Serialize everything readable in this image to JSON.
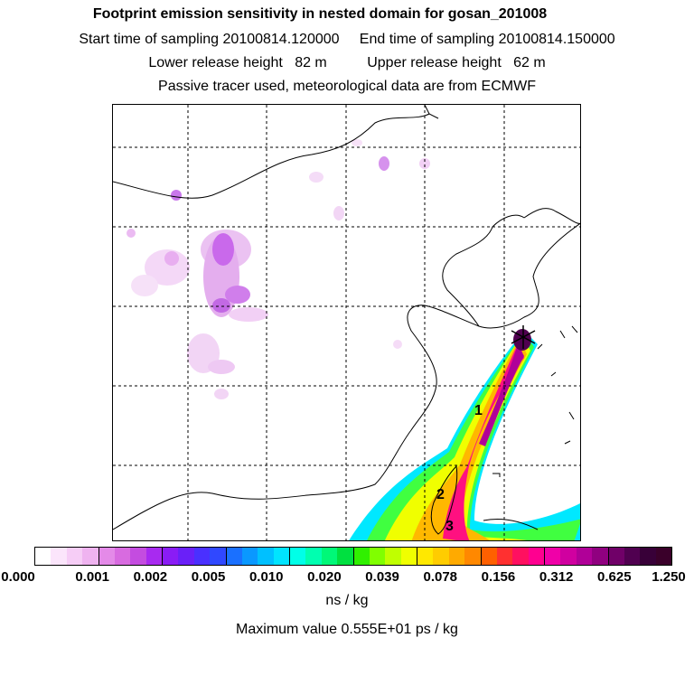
{
  "header": {
    "title": "Footprint emission sensitivity in nested domain for gosan_201008",
    "start_label": "Start time of sampling 20100814.120000",
    "end_label": "End time of sampling 20100814.150000",
    "lower_label": "Lower release height   82 m",
    "upper_label": "Upper release height   62 m",
    "tracer_label": "Passive tracer used, meteorological data are from ECMWF"
  },
  "map": {
    "markers": [
      "1",
      "2",
      "3"
    ],
    "receptor_icon": "star-icon"
  },
  "colorbar": {
    "ticks": [
      "0.000",
      "0.001",
      "0.002",
      "0.005",
      "0.010",
      "0.020",
      "0.039",
      "0.078",
      "0.156",
      "0.312",
      "0.625",
      "1.250"
    ],
    "colors": [
      "#ffffff",
      "#fbe5fb",
      "#f6cdf6",
      "#efb3f0",
      "#e48ae8",
      "#d86be0",
      "#c44ce0",
      "#a82af0",
      "#8a1cf5",
      "#6a20f8",
      "#4a30ff",
      "#3048ff",
      "#1a70ff",
      "#0a98ff",
      "#00c0ff",
      "#00e4ff",
      "#00ffe8",
      "#00ffb0",
      "#00f878",
      "#00e040",
      "#30f000",
      "#80ff00",
      "#c0ff00",
      "#f0ff00",
      "#ffe800",
      "#ffcc00",
      "#ffaa00",
      "#ff8800",
      "#ff6000",
      "#ff3030",
      "#ff1060",
      "#ff0090",
      "#f000a8",
      "#d000a0",
      "#b00098",
      "#900080",
      "#700068",
      "#500050",
      "#380038",
      "#3a002a"
    ],
    "unit": "ns / kg",
    "max_label": "Maximum value  0.555E+01 ps / kg"
  }
}
